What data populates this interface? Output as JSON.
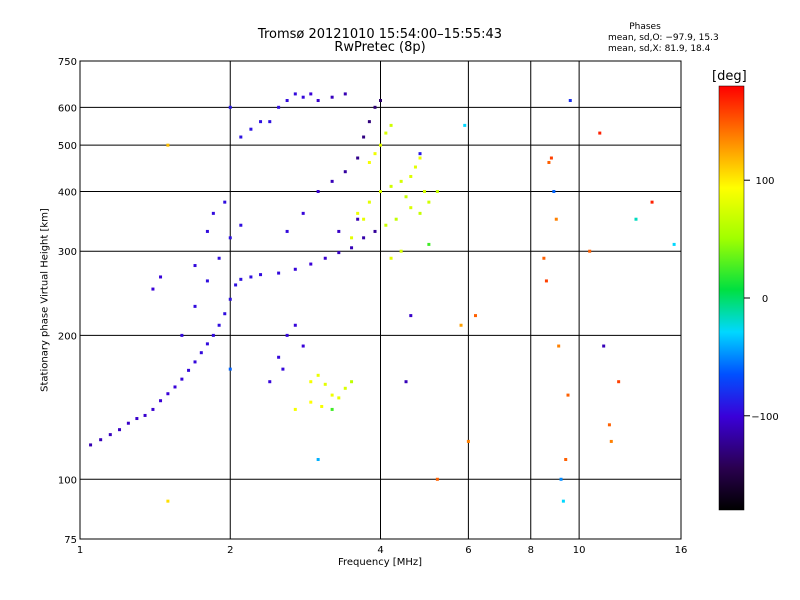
{
  "title": "Tromsø 20121010 15:54:00–15:55:43",
  "subtitle": "RwPretec (8p)",
  "phases_stats": {
    "title": "Phases",
    "o_line": "mean, sd,O: −97.9, 15.3",
    "x_line": "mean, sd,X:  81.9, 18.4"
  },
  "colorbar": {
    "label": "[deg]",
    "range": [
      -180,
      180
    ],
    "ticks": [
      100,
      0,
      -100
    ],
    "tick_labels": [
      "100",
      "0",
      "−100"
    ]
  },
  "chart_data": {
    "type": "scatter",
    "xlabel": "Frequency [MHz]",
    "ylabel": "Stationary phase Virtual Height [km]",
    "xscale": "log",
    "yscale": "log",
    "xlim": [
      1,
      16
    ],
    "ylim": [
      75,
      750
    ],
    "xticks": [
      1,
      2,
      4,
      6,
      8,
      10,
      16
    ],
    "xtick_labels": [
      "1",
      "2",
      "4",
      "6",
      "8",
      "10",
      "16"
    ],
    "yticks": [
      75,
      100,
      200,
      300,
      400,
      500,
      600,
      750
    ],
    "ytick_labels": [
      "75",
      "100",
      "200",
      "300",
      "400",
      "500",
      "600",
      "750"
    ],
    "grid": true,
    "color_encoding": "phase [deg]",
    "series": [
      {
        "points": [
          [
            1.05,
            118,
            -112
          ],
          [
            1.1,
            121,
            -110
          ],
          [
            1.15,
            124,
            -108
          ],
          [
            1.2,
            127,
            -106
          ],
          [
            1.25,
            131,
            -105
          ],
          [
            1.3,
            134,
            -104
          ],
          [
            1.35,
            136,
            -103
          ],
          [
            1.4,
            140,
            -102
          ],
          [
            1.45,
            146,
            -101
          ],
          [
            1.5,
            151,
            -100
          ],
          [
            1.55,
            156,
            -99
          ],
          [
            1.6,
            162,
            -98
          ],
          [
            1.65,
            169,
            -97
          ],
          [
            1.7,
            176,
            -97
          ],
          [
            1.75,
            184,
            -96
          ],
          [
            1.8,
            192,
            -95
          ],
          [
            1.85,
            200,
            -95
          ],
          [
            1.9,
            210,
            -94
          ],
          [
            1.95,
            222,
            -94
          ],
          [
            2.0,
            238,
            -93
          ],
          [
            2.05,
            255,
            -93
          ],
          [
            2.1,
            262,
            -93
          ],
          [
            2.2,
            265,
            -94
          ],
          [
            2.3,
            268,
            -95
          ],
          [
            2.5,
            270,
            -96
          ],
          [
            2.7,
            275,
            -98
          ],
          [
            2.9,
            282,
            -100
          ],
          [
            3.1,
            290,
            -103
          ],
          [
            3.3,
            298,
            -106
          ],
          [
            3.5,
            305,
            -110
          ],
          [
            1.6,
            200,
            -96
          ],
          [
            1.7,
            230,
            -95
          ],
          [
            1.8,
            260,
            -94
          ],
          [
            1.9,
            290,
            -94
          ],
          [
            2.0,
            320,
            -93
          ],
          [
            2.1,
            340,
            -94
          ],
          [
            1.7,
            280,
            -96
          ],
          [
            1.8,
            330,
            -95
          ],
          [
            1.85,
            360,
            -95
          ],
          [
            1.95,
            380,
            -94
          ],
          [
            1.4,
            250,
            -100
          ],
          [
            1.45,
            265,
            -99
          ],
          [
            2.4,
            160,
            -98
          ],
          [
            2.5,
            180,
            -97
          ],
          [
            2.6,
            200,
            -97
          ],
          [
            2.7,
            210,
            -98
          ],
          [
            2.8,
            190,
            -99
          ],
          [
            2.55,
            170,
            -97
          ],
          [
            2.1,
            520,
            -92
          ],
          [
            2.2,
            540,
            -92
          ],
          [
            2.3,
            560,
            -93
          ],
          [
            2.4,
            560,
            -93
          ],
          [
            2.5,
            600,
            -94
          ],
          [
            2.6,
            620,
            -95
          ],
          [
            2.7,
            640,
            -96
          ],
          [
            2.8,
            630,
            -97
          ],
          [
            2.9,
            640,
            -100
          ],
          [
            3.0,
            620,
            -103
          ],
          [
            3.2,
            630,
            -108
          ],
          [
            3.4,
            640,
            -112
          ],
          [
            2.6,
            330,
            -96
          ],
          [
            2.8,
            360,
            -98
          ],
          [
            3.0,
            400,
            -102
          ],
          [
            3.2,
            420,
            -110
          ],
          [
            3.4,
            440,
            -118
          ],
          [
            3.6,
            470,
            -125
          ],
          [
            3.7,
            520,
            -128
          ],
          [
            3.8,
            560,
            -130
          ],
          [
            3.9,
            600,
            -132
          ],
          [
            3.3,
            330,
            -106
          ],
          [
            3.6,
            350,
            -112
          ],
          [
            4.0,
            620,
            -135
          ],
          [
            3.9,
            330,
            -120
          ],
          [
            3.7,
            320,
            -115
          ]
        ]
      },
      {
        "points": [
          [
            2.9,
            160,
            95
          ],
          [
            3.0,
            165,
            90
          ],
          [
            3.1,
            158,
            85
          ],
          [
            3.2,
            150,
            92
          ],
          [
            3.3,
            148,
            88
          ],
          [
            3.4,
            155,
            80
          ],
          [
            2.9,
            145,
            100
          ],
          [
            3.05,
            142,
            96
          ],
          [
            3.6,
            360,
            90
          ],
          [
            3.8,
            380,
            85
          ],
          [
            4.0,
            400,
            80
          ],
          [
            4.2,
            410,
            75
          ],
          [
            4.4,
            420,
            78
          ],
          [
            4.6,
            430,
            82
          ],
          [
            4.7,
            450,
            85
          ],
          [
            4.8,
            470,
            90
          ],
          [
            4.5,
            390,
            70
          ],
          [
            4.9,
            400,
            78
          ],
          [
            3.8,
            460,
            95
          ],
          [
            3.9,
            480,
            92
          ],
          [
            4.0,
            500,
            85
          ],
          [
            4.1,
            530,
            80
          ],
          [
            4.2,
            550,
            75
          ],
          [
            3.7,
            350,
            88
          ],
          [
            3.5,
            320,
            85
          ],
          [
            4.1,
            340,
            72
          ],
          [
            4.3,
            350,
            68
          ],
          [
            4.6,
            370,
            80
          ],
          [
            5.0,
            380,
            75
          ],
          [
            5.2,
            400,
            70
          ],
          [
            3.5,
            160,
            65
          ],
          [
            2.7,
            140,
            95
          ],
          [
            4.8,
            360,
            70
          ],
          [
            4.4,
            300,
            80
          ],
          [
            4.2,
            290,
            85
          ]
        ]
      },
      {
        "points": [
          [
            1.5,
            90,
            110
          ],
          [
            1.5,
            500,
            120
          ],
          [
            2.0,
            170,
            -60
          ],
          [
            2.0,
            600,
            -90
          ],
          [
            3.0,
            110,
            -40
          ],
          [
            3.2,
            140,
            20
          ],
          [
            4.5,
            160,
            -110
          ],
          [
            4.6,
            220,
            -105
          ],
          [
            4.8,
            480,
            -90
          ],
          [
            5.0,
            310,
            20
          ],
          [
            5.2,
            100,
            150
          ],
          [
            5.8,
            210,
            130
          ],
          [
            5.9,
            550,
            -30
          ],
          [
            6.0,
            120,
            140
          ],
          [
            6.2,
            220,
            150
          ],
          [
            8.5,
            290,
            150
          ],
          [
            8.6,
            260,
            160
          ],
          [
            8.7,
            460,
            150
          ],
          [
            8.8,
            470,
            160
          ],
          [
            8.9,
            400,
            -60
          ],
          [
            9.0,
            350,
            140
          ],
          [
            9.1,
            190,
            140
          ],
          [
            9.2,
            100,
            -50
          ],
          [
            9.3,
            90,
            -30
          ],
          [
            9.4,
            110,
            150
          ],
          [
            9.5,
            150,
            150
          ],
          [
            9.6,
            620,
            -80
          ],
          [
            10.5,
            300,
            150
          ],
          [
            11.0,
            530,
            170
          ],
          [
            11.2,
            190,
            -110
          ],
          [
            11.5,
            130,
            150
          ],
          [
            11.6,
            120,
            140
          ],
          [
            12.0,
            160,
            160
          ],
          [
            13.0,
            350,
            -20
          ],
          [
            14.0,
            380,
            170
          ],
          [
            15.5,
            310,
            -30
          ]
        ]
      }
    ]
  }
}
